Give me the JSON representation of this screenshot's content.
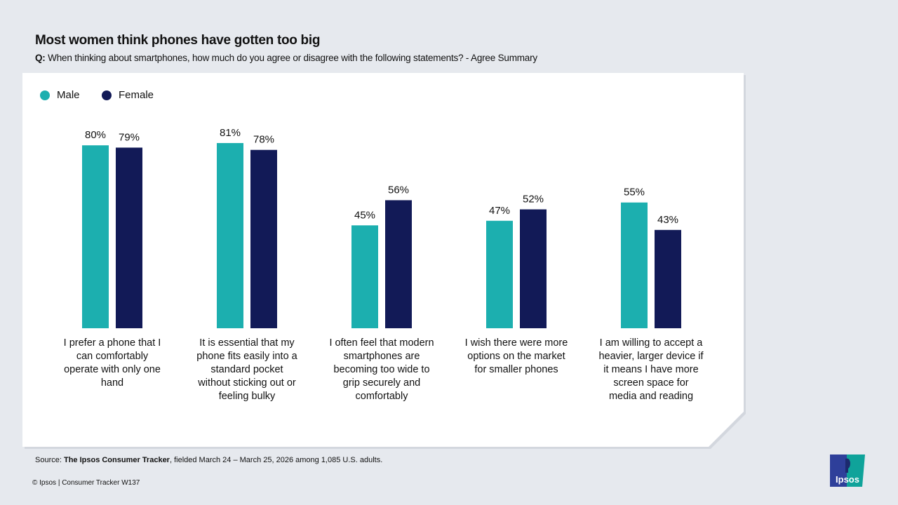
{
  "title": "Most women think phones have gotten too big",
  "subtitle": {
    "prefix": "Q:",
    "text": "When thinking about smartphones, how much do you agree or disagree with the following statements? - Agree Summary"
  },
  "colors": {
    "male": "#1cafaf",
    "female": "#121a57",
    "background": "#e6e9ee"
  },
  "chart_data": {
    "type": "bar",
    "categories": [
      "I prefer a phone that I can comfortably operate with only one hand",
      "It is essential that my phone fits easily into a standard pocket without sticking out or feeling bulky",
      "I often feel that modern smartphones are becoming too wide to grip securely and comfortably",
      "I wish there were more options on the market for smaller phones",
      "I am willing to accept a heavier, larger device if it means I have more screen space for media and reading"
    ],
    "series": [
      {
        "name": "Male",
        "values": [
          80,
          81,
          45,
          47,
          55
        ]
      },
      {
        "name": "Female",
        "values": [
          79,
          78,
          56,
          52,
          43
        ]
      }
    ],
    "value_format": "%",
    "ylim": [
      0,
      100
    ],
    "grid": false,
    "legend": "top-left"
  },
  "footer": {
    "source_prefix": "Source: ",
    "source_bold": "The Ipsos Consumer Tracker",
    "source_rest": ", fielded March 24 – March 25, 2026 among 1,085 U.S. adults.",
    "copyright": "© Ipsos | Consumer Tracker W137",
    "logo_text": "Ipsos"
  }
}
